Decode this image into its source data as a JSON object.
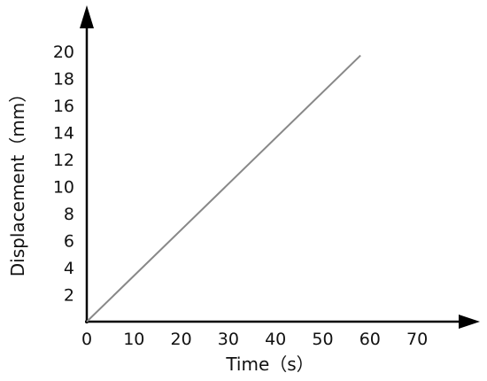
{
  "chart_data": {
    "type": "line",
    "title": "",
    "xlabel": "Time（s）",
    "ylabel": "Displacement（mm）",
    "xlim": [
      0,
      70
    ],
    "ylim": [
      0,
      20
    ],
    "x_ticks": [
      0,
      10,
      20,
      30,
      40,
      50,
      60,
      70
    ],
    "y_ticks": [
      2,
      4,
      6,
      8,
      10,
      12,
      14,
      16,
      18,
      20
    ],
    "grid": false,
    "legend": "none",
    "series": [
      {
        "x": [
          0,
          58
        ],
        "y": [
          0,
          19.7
        ]
      }
    ],
    "colors": {
      "axis": "#000000",
      "line": "#888888",
      "text": "#111111"
    }
  }
}
